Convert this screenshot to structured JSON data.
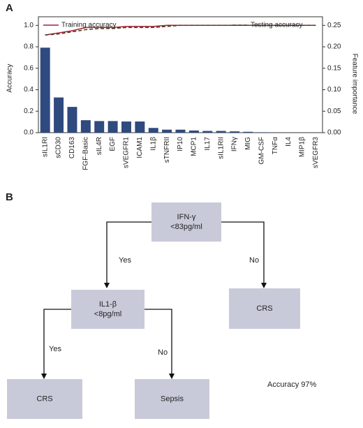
{
  "panels": [
    "A",
    "B"
  ],
  "chart_data": {
    "type": "combo",
    "ylabel": "Accuracy",
    "y2label": "Feature importance",
    "categories": [
      "sIL1RI",
      "sCD30",
      "CD163",
      "FGF-Basic",
      "sIL4R",
      "EGF",
      "sVEGFR1",
      "ICAM1",
      "IL1β",
      "sTNFRII",
      "IP10",
      "MCP1",
      "IL17",
      "sIL1RII",
      "IFNγ",
      "MIG",
      "GM-CSF",
      "TNFα",
      "IL4",
      "MIP1β",
      "sVEGFR3"
    ],
    "bars": {
      "axis": "y2",
      "color": "#2e4a7f",
      "values": [
        0.198,
        0.082,
        0.06,
        0.029,
        0.027,
        0.027,
        0.026,
        0.026,
        0.011,
        0.007,
        0.007,
        0.005,
        0.004,
        0.004,
        0.003,
        0.002,
        0.001,
        0,
        0,
        0,
        0
      ]
    },
    "series": [
      {
        "name": "Training accuracy",
        "color": "#a3203a",
        "dash": false,
        "values": [
          0.91,
          0.93,
          0.95,
          0.98,
          0.98,
          0.98,
          0.99,
          0.99,
          0.99,
          1,
          1,
          1,
          1,
          1,
          1,
          1,
          1,
          1,
          1,
          1,
          1
        ]
      },
      {
        "name": "Testing accuracy",
        "color": "#4a3a1a",
        "dash": true,
        "values": [
          0.91,
          0.92,
          0.94,
          0.96,
          0.97,
          0.97,
          0.98,
          0.98,
          0.98,
          0.99,
          1,
          1,
          1,
          1,
          1,
          1,
          1,
          1,
          1,
          1,
          1
        ]
      }
    ],
    "ylim": [
      0,
      1.08
    ],
    "yticks": [
      {
        "value": 0,
        "label": "0.0"
      },
      0.2,
      0.4,
      0.6,
      0.8,
      {
        "value": 1,
        "label": "1.0"
      }
    ],
    "y2lim": [
      0,
      0.27
    ],
    "y2ticks": [
      {
        "value": 0,
        "label": "0.00"
      },
      0.05,
      {
        "value": 0.1,
        "label": "0.10"
      },
      0.15,
      {
        "value": 0.2,
        "label": "0.20"
      },
      0.25
    ]
  },
  "diagram": {
    "nodes": [
      {
        "lines": [
          "IFN-γ",
          "<83pg/ml"
        ]
      },
      {
        "lines": [
          "IL1-β",
          "<8pg/ml"
        ]
      },
      {
        "lines": [
          "CRS"
        ]
      },
      {
        "lines": [
          "CRS"
        ]
      },
      {
        "lines": [
          "Sepsis"
        ]
      }
    ],
    "edges": [
      {
        "label": "Yes"
      },
      {
        "label": "No"
      },
      {
        "label": "Yes"
      },
      {
        "label": "No"
      }
    ],
    "note": "Accuracy 97%"
  }
}
